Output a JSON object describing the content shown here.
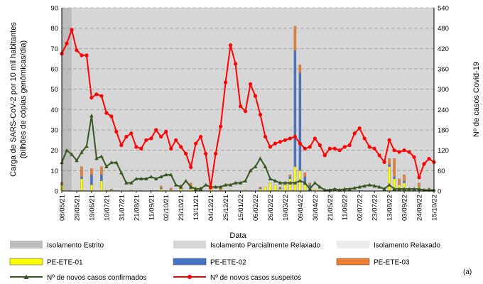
{
  "chart_data": {
    "type": "bar",
    "panel_label": "(a)",
    "xlabel": "Data",
    "ylabel_lines": [
      "Carga de SARS-CoV-2 por 10 mil habitantes",
      "(bilhões de cópias genômicas/dia)"
    ],
    "y2label": "Nº de casos Covid-19",
    "ylim": [
      0,
      90
    ],
    "y2lim": [
      0,
      540
    ],
    "yticks": [
      0,
      10,
      20,
      30,
      40,
      50,
      60,
      70,
      80,
      90
    ],
    "y2ticks": [
      0,
      60,
      120,
      180,
      240,
      300,
      360,
      420,
      480,
      540
    ],
    "grid": true,
    "legend_position": "bottom",
    "x_tick_labels": [
      "08/05/21",
      "29/05/21",
      "19/06/21",
      "10/07/21",
      "31/07/21",
      "21/08/21",
      "11/09/21",
      "02/10/21",
      "23/10/21",
      "13/11/21",
      "04/12/21",
      "25/12/21",
      "15/01/22",
      "05/02/22",
      "26/02/22",
      "19/03/22",
      "09/04/22",
      "30/04/22",
      "21/05/22",
      "11/06/22",
      "02/07/22",
      "23/07/22",
      "13/08/22",
      "03/09/22",
      "24/09/22",
      "15/10/22"
    ],
    "x_range_weeks": [
      0,
      75
    ],
    "isolation_periods": [
      {
        "name": "Isolamento Estrito",
        "start_week": 0,
        "end_week": 2,
        "color": "#bdbdbd"
      },
      {
        "name": "Isolamento Parcialmente Relaxado",
        "start_week": 2,
        "end_week": 75,
        "color": "#d6d6d6"
      },
      {
        "name": "Isolamento Relaxado",
        "start_week": null,
        "end_week": null,
        "color": "#ececec"
      }
    ],
    "bar_series": [
      {
        "name": "PE-ETE-01",
        "color": "#ffff00",
        "points": [
          [
            0,
            3
          ],
          [
            4,
            6
          ],
          [
            6,
            3
          ],
          [
            8,
            5
          ],
          [
            9,
            0.5
          ],
          [
            10,
            0.5
          ],
          [
            14,
            0.5
          ],
          [
            16,
            0.3
          ],
          [
            18,
            0.3
          ],
          [
            20,
            1
          ],
          [
            22,
            0.5
          ],
          [
            24,
            1
          ],
          [
            26,
            1
          ],
          [
            27,
            2
          ],
          [
            28,
            0.5
          ],
          [
            30,
            1
          ],
          [
            32,
            0.5
          ],
          [
            34,
            0.5
          ],
          [
            37,
            0.5
          ],
          [
            40,
            1
          ],
          [
            41,
            2
          ],
          [
            42,
            4
          ],
          [
            43,
            3
          ],
          [
            44,
            1
          ],
          [
            45,
            3
          ],
          [
            46,
            6
          ],
          [
            47,
            12
          ],
          [
            48,
            10
          ],
          [
            49,
            3
          ],
          [
            50,
            2
          ],
          [
            51,
            1
          ],
          [
            52,
            0.5
          ],
          [
            56,
            0.3
          ],
          [
            60,
            0.3
          ],
          [
            66,
            12
          ],
          [
            67,
            6
          ],
          [
            68,
            3
          ],
          [
            69,
            4
          ],
          [
            72,
            2
          ],
          [
            74,
            1
          ]
        ]
      },
      {
        "name": "PE-ETE-02",
        "color": "#4472c4",
        "points": [
          [
            0,
            0.5
          ],
          [
            4,
            1
          ],
          [
            6,
            5
          ],
          [
            8,
            3
          ],
          [
            20,
            0.5
          ],
          [
            26,
            1
          ],
          [
            28,
            0.5
          ],
          [
            40,
            0.5
          ],
          [
            44,
            0.5
          ],
          [
            46,
            1
          ],
          [
            47,
            57
          ],
          [
            48,
            48
          ],
          [
            49,
            4
          ],
          [
            50,
            1
          ],
          [
            66,
            1
          ],
          [
            67,
            1
          ],
          [
            69,
            1
          ]
        ]
      },
      {
        "name": "PE-ETE-03",
        "color": "#ed7d31",
        "points": [
          [
            0,
            1
          ],
          [
            4,
            5
          ],
          [
            6,
            3
          ],
          [
            8,
            4
          ],
          [
            10,
            0.5
          ],
          [
            20,
            1
          ],
          [
            22,
            1
          ],
          [
            24,
            2
          ],
          [
            26,
            2
          ],
          [
            28,
            1
          ],
          [
            32,
            1
          ],
          [
            40,
            0.5
          ],
          [
            44,
            0.5
          ],
          [
            46,
            1
          ],
          [
            47,
            12
          ],
          [
            48,
            4
          ],
          [
            49,
            2
          ],
          [
            50,
            1
          ],
          [
            66,
            3
          ],
          [
            67,
            9
          ],
          [
            68,
            3
          ],
          [
            69,
            3
          ],
          [
            72,
            2
          ],
          [
            74,
            0.5
          ]
        ]
      }
    ],
    "line_series": [
      {
        "name": "Nº de novos casos confirmados",
        "axis": "left",
        "color": "#385723",
        "marker": "triangle",
        "points": [
          [
            0,
            14
          ],
          [
            1,
            20
          ],
          [
            2,
            18
          ],
          [
            3,
            15
          ],
          [
            4,
            19
          ],
          [
            5,
            22
          ],
          [
            6,
            37
          ],
          [
            7,
            16
          ],
          [
            8,
            17
          ],
          [
            9,
            12
          ],
          [
            10,
            14
          ],
          [
            11,
            14
          ],
          [
            12,
            9
          ],
          [
            13,
            4
          ],
          [
            14,
            4
          ],
          [
            15,
            6
          ],
          [
            16,
            6
          ],
          [
            17,
            6
          ],
          [
            18,
            7
          ],
          [
            19,
            6
          ],
          [
            20,
            7
          ],
          [
            21,
            8
          ],
          [
            22,
            8
          ],
          [
            23,
            3
          ],
          [
            24,
            2
          ],
          [
            25,
            5
          ],
          [
            26,
            2
          ],
          [
            27,
            1
          ],
          [
            28,
            1
          ],
          [
            29,
            3
          ],
          [
            30,
            2
          ],
          [
            31,
            2
          ],
          [
            32,
            2
          ],
          [
            33,
            3
          ],
          [
            34,
            3
          ],
          [
            35,
            4
          ],
          [
            36,
            4
          ],
          [
            37,
            5
          ],
          [
            38,
            10
          ],
          [
            39,
            12
          ],
          [
            40,
            16
          ],
          [
            41,
            12
          ],
          [
            42,
            6
          ],
          [
            43,
            5
          ],
          [
            44,
            4
          ],
          [
            45,
            4
          ],
          [
            46,
            4
          ],
          [
            47,
            4
          ],
          [
            48,
            5
          ],
          [
            49,
            4
          ],
          [
            50,
            1
          ],
          [
            51,
            4
          ],
          [
            52,
            2
          ],
          [
            53,
            0.5
          ],
          [
            54,
            0.5
          ],
          [
            55,
            1
          ],
          [
            56,
            0.5
          ],
          [
            57,
            1
          ],
          [
            58,
            1
          ],
          [
            59,
            1.5
          ],
          [
            60,
            2
          ],
          [
            61,
            2.5
          ],
          [
            62,
            3
          ],
          [
            63,
            2.5
          ],
          [
            64,
            2
          ],
          [
            65,
            1
          ],
          [
            66,
            3
          ],
          [
            67,
            1
          ],
          [
            68,
            1
          ],
          [
            69,
            1
          ],
          [
            70,
            1
          ],
          [
            71,
            1
          ],
          [
            72,
            1
          ],
          [
            73,
            0.5
          ],
          [
            74,
            0.5
          ],
          [
            75,
            0.5
          ]
        ]
      },
      {
        "name": "Nº de novos casos suspeitos",
        "axis": "right",
        "color": "#ff0000",
        "marker": "circle",
        "points": [
          [
            0,
            405
          ],
          [
            1,
            435
          ],
          [
            2,
            475
          ],
          [
            3,
            415
          ],
          [
            4,
            400
          ],
          [
            5,
            400
          ],
          [
            6,
            275
          ],
          [
            7,
            285
          ],
          [
            8,
            280
          ],
          [
            9,
            230
          ],
          [
            10,
            220
          ],
          [
            11,
            175
          ],
          [
            12,
            135
          ],
          [
            13,
            160
          ],
          [
            14,
            170
          ],
          [
            15,
            130
          ],
          [
            16,
            125
          ],
          [
            17,
            150
          ],
          [
            18,
            155
          ],
          [
            19,
            180
          ],
          [
            20,
            160
          ],
          [
            21,
            175
          ],
          [
            22,
            125
          ],
          [
            23,
            150
          ],
          [
            24,
            130
          ],
          [
            25,
            110
          ],
          [
            26,
            70
          ],
          [
            27,
            140
          ],
          [
            28,
            160
          ],
          [
            29,
            110
          ],
          [
            30,
            10
          ],
          [
            31,
            110
          ],
          [
            32,
            190
          ],
          [
            33,
            320
          ],
          [
            34,
            430
          ],
          [
            35,
            375
          ],
          [
            36,
            250
          ],
          [
            37,
            235
          ],
          [
            38,
            315
          ],
          [
            39,
            280
          ],
          [
            40,
            225
          ],
          [
            41,
            160
          ],
          [
            42,
            130
          ],
          [
            43,
            140
          ],
          [
            44,
            145
          ],
          [
            45,
            150
          ],
          [
            46,
            155
          ],
          [
            47,
            160
          ],
          [
            48,
            140
          ],
          [
            49,
            125
          ],
          [
            50,
            130
          ],
          [
            51,
            155
          ],
          [
            52,
            135
          ],
          [
            53,
            105
          ],
          [
            54,
            125
          ],
          [
            55,
            125
          ],
          [
            56,
            120
          ],
          [
            57,
            130
          ],
          [
            58,
            135
          ],
          [
            59,
            170
          ],
          [
            60,
            185
          ],
          [
            61,
            155
          ],
          [
            62,
            130
          ],
          [
            63,
            125
          ],
          [
            64,
            105
          ],
          [
            65,
            85
          ],
          [
            66,
            150
          ],
          [
            67,
            120
          ],
          [
            68,
            115
          ],
          [
            69,
            120
          ],
          [
            70,
            115
          ],
          [
            71,
            100
          ],
          [
            72,
            40
          ],
          [
            73,
            80
          ],
          [
            74,
            95
          ],
          [
            75,
            85
          ]
        ]
      }
    ]
  },
  "legend": {
    "row1": [
      "Isolamento Estrito",
      "Isolamento Parcialmente Relaxado",
      "Isolamento Relaxado"
    ],
    "row2": [
      "PE-ETE-01",
      "PE-ETE-02",
      "PE-ETE-03"
    ],
    "row3": [
      "Nº de novos casos confirmados",
      "Nº de novos casos suspeitos"
    ]
  }
}
